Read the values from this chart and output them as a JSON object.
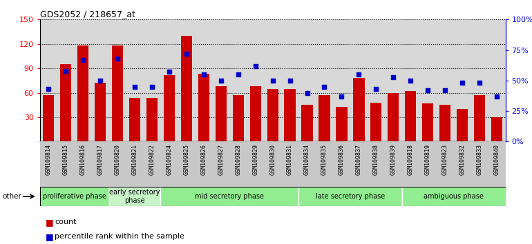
{
  "title": "GDS2052 / 218657_at",
  "samples": [
    "GSM109814",
    "GSM109815",
    "GSM109816",
    "GSM109817",
    "GSM109820",
    "GSM109821",
    "GSM109822",
    "GSM109824",
    "GSM109825",
    "GSM109826",
    "GSM109827",
    "GSM109828",
    "GSM109829",
    "GSM109830",
    "GSM109831",
    "GSM109834",
    "GSM109835",
    "GSM109836",
    "GSM109837",
    "GSM109838",
    "GSM109839",
    "GSM109818",
    "GSM109819",
    "GSM109823",
    "GSM109832",
    "GSM109833",
    "GSM109840"
  ],
  "bar_values": [
    57,
    95,
    118,
    72,
    118,
    54,
    54,
    82,
    130,
    83,
    68,
    57,
    68,
    65,
    65,
    45,
    57,
    43,
    78,
    48,
    60,
    62,
    47,
    45,
    40,
    57,
    30
  ],
  "dot_values": [
    43,
    58,
    67,
    50,
    68,
    45,
    45,
    57,
    72,
    55,
    50,
    55,
    62,
    50,
    50,
    40,
    45,
    37,
    55,
    43,
    53,
    50,
    42,
    42,
    48,
    48,
    37
  ],
  "bar_color": "#cc0000",
  "dot_color": "#0000cc",
  "ylim_left": [
    0,
    150
  ],
  "ylim_right": [
    0,
    100
  ],
  "yticks_left": [
    30,
    60,
    90,
    120,
    150
  ],
  "yticks_right": [
    0,
    25,
    50,
    75,
    100
  ],
  "ytick_labels_right": [
    "0%",
    "25%",
    "50%",
    "75%",
    "100%"
  ],
  "phases": [
    {
      "label": "proliferative phase",
      "start": 0,
      "end": 4,
      "color": "#90ee90"
    },
    {
      "label": "early secretory\nphase",
      "start": 4,
      "end": 7,
      "color": "#c8f5c8"
    },
    {
      "label": "mid secretory phase",
      "start": 7,
      "end": 15,
      "color": "#90ee90"
    },
    {
      "label": "late secretory phase",
      "start": 15,
      "end": 21,
      "color": "#90ee90"
    },
    {
      "label": "ambiguous phase",
      "start": 21,
      "end": 27,
      "color": "#90ee90"
    }
  ],
  "other_label": "other",
  "legend_count": "count",
  "legend_percentile": "percentile rank within the sample",
  "plot_bg": "#d8d8d8",
  "fig_bg": "#ffffff"
}
